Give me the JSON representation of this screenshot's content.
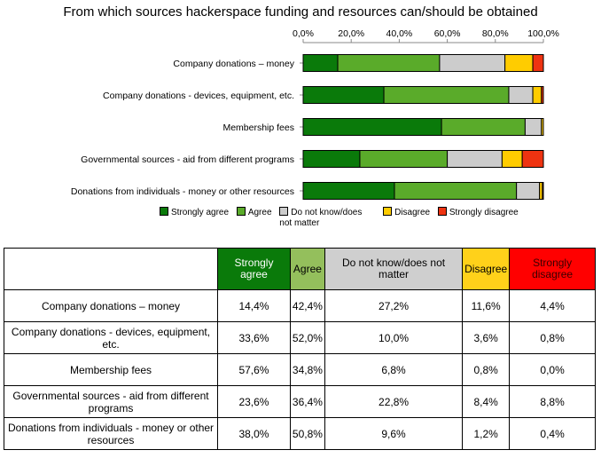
{
  "chart_data": {
    "type": "bar",
    "orientation": "horizontal",
    "stacked": true,
    "percent": true,
    "title": "From which sources hackerspace funding and resources can/should be obtained",
    "categories": [
      "Company donations – money",
      "Company donations - devices, equipment, etc.",
      "Membership fees",
      "Governmental sources - aid from different programs",
      "Donations from individuals - money or other resources"
    ],
    "series": [
      {
        "name": "Strongly agree",
        "color": "#0a7a0a",
        "values": [
          14.4,
          33.6,
          57.6,
          23.6,
          38.0
        ]
      },
      {
        "name": "Agree",
        "color": "#5aab2a",
        "values": [
          42.4,
          52.0,
          34.8,
          36.4,
          50.8
        ]
      },
      {
        "name": "Do not know/does not matter",
        "color": "#cccccc",
        "values": [
          27.2,
          10.0,
          6.8,
          22.8,
          9.6
        ]
      },
      {
        "name": "Disagree",
        "color": "#ffcc00",
        "values": [
          11.6,
          3.6,
          0.8,
          8.4,
          1.2
        ]
      },
      {
        "name": "Strongly disagree",
        "color": "#ee3311",
        "values": [
          4.4,
          0.8,
          0.0,
          8.8,
          0.4
        ]
      }
    ],
    "xlim": [
      0,
      100
    ],
    "ticks": [
      "0,0%",
      "20,0%",
      "40,0%",
      "60,0%",
      "80,0%",
      "100,0%"
    ],
    "legend_position": "bottom"
  },
  "legend": [
    {
      "label": "Strongly agree",
      "color": "#0a7a0a"
    },
    {
      "label": "Agree",
      "color": "#5aab2a"
    },
    {
      "label": "Do not know/does not matter",
      "color": "#cccccc"
    },
    {
      "label": "Disagree",
      "color": "#ffcc00"
    },
    {
      "label": "Strongly disagree",
      "color": "#ee3311"
    }
  ],
  "table": {
    "headers": [
      {
        "label": "Strongly agree",
        "bg": "#0a7a0a",
        "fg": "#ffffff"
      },
      {
        "label": "Agree",
        "bg": "#94bf5c",
        "fg": "#000000"
      },
      {
        "label": "Do not know/does not matter",
        "bg": "#cfcfcf",
        "fg": "#000000"
      },
      {
        "label": "Disagree",
        "bg": "#ffd11a",
        "fg": "#000000"
      },
      {
        "label": "Strongly disagree",
        "bg": "#ff0000",
        "fg": "#3a0000"
      }
    ],
    "rows": [
      {
        "label": "Company donations – money",
        "values": [
          "14,4%",
          "42,4%",
          "27,2%",
          "11,6%",
          "4,4%"
        ]
      },
      {
        "label": "Company donations - devices, equipment, etc.",
        "values": [
          "33,6%",
          "52,0%",
          "10,0%",
          "3,6%",
          "0,8%"
        ]
      },
      {
        "label": "Membership fees",
        "values": [
          "57,6%",
          "34,8%",
          "6,8%",
          "0,8%",
          "0,0%"
        ]
      },
      {
        "label": "Governmental sources - aid from different programs",
        "values": [
          "23,6%",
          "36,4%",
          "22,8%",
          "8,4%",
          "8,8%"
        ]
      },
      {
        "label": "Donations from individuals - money or other resources",
        "values": [
          "38,0%",
          "50,8%",
          "9,6%",
          "1,2%",
          "0,4%"
        ]
      }
    ]
  }
}
